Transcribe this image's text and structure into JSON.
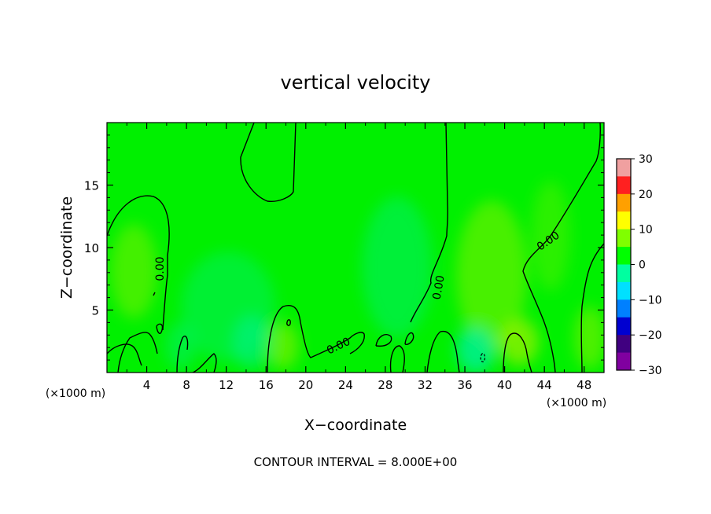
{
  "chart_data": {
    "type": "heatmap",
    "title": "vertical velocity",
    "xlabel": "X−coordinate",
    "ylabel": "Z−coordinate",
    "x_unit": "(×1000 m)",
    "y_unit": "(×1000 m)",
    "footer": "CONTOUR INTERVAL = 8.000E+00",
    "xlim": [
      0,
      50
    ],
    "ylim": [
      0,
      20
    ],
    "x_ticks": [
      4,
      8,
      12,
      16,
      20,
      24,
      28,
      32,
      36,
      40,
      44,
      48
    ],
    "y_ticks": [
      5,
      10,
      15
    ],
    "colorbar": {
      "min": -30,
      "max": 30,
      "ticks": [
        30,
        20,
        10,
        0,
        -10,
        -20,
        -30
      ],
      "tick_labels": [
        "30",
        "20",
        "10",
        "0",
        "−10",
        "−20",
        "−30"
      ],
      "colors": [
        "#f0a0a0",
        "#ff2020",
        "#ffa000",
        "#ffff00",
        "#80ff00",
        "#00ff00",
        "#00ffa0",
        "#00e0ff",
        "#0080ff",
        "#0000d0",
        "#400080",
        "#8000a0"
      ]
    },
    "contour_interval": 8.0,
    "contours": [
      {
        "level": 0.0,
        "label": "0.00",
        "label_x": 5.4,
        "label_y": 8.3,
        "label_angle": -90
      },
      {
        "level": 0.0,
        "label": "0.00",
        "label_x": 23.3,
        "label_y": 2.1,
        "label_angle": -25
      },
      {
        "level": 0.0,
        "label": "0.00",
        "label_x": 33.4,
        "label_y": 6.8,
        "label_angle": -80
      },
      {
        "level": 0.0,
        "label": "0.00",
        "label_x": 44.4,
        "label_y": 10.5,
        "label_angle": -35
      }
    ],
    "field_range_estimate": [
      -8,
      8
    ]
  }
}
